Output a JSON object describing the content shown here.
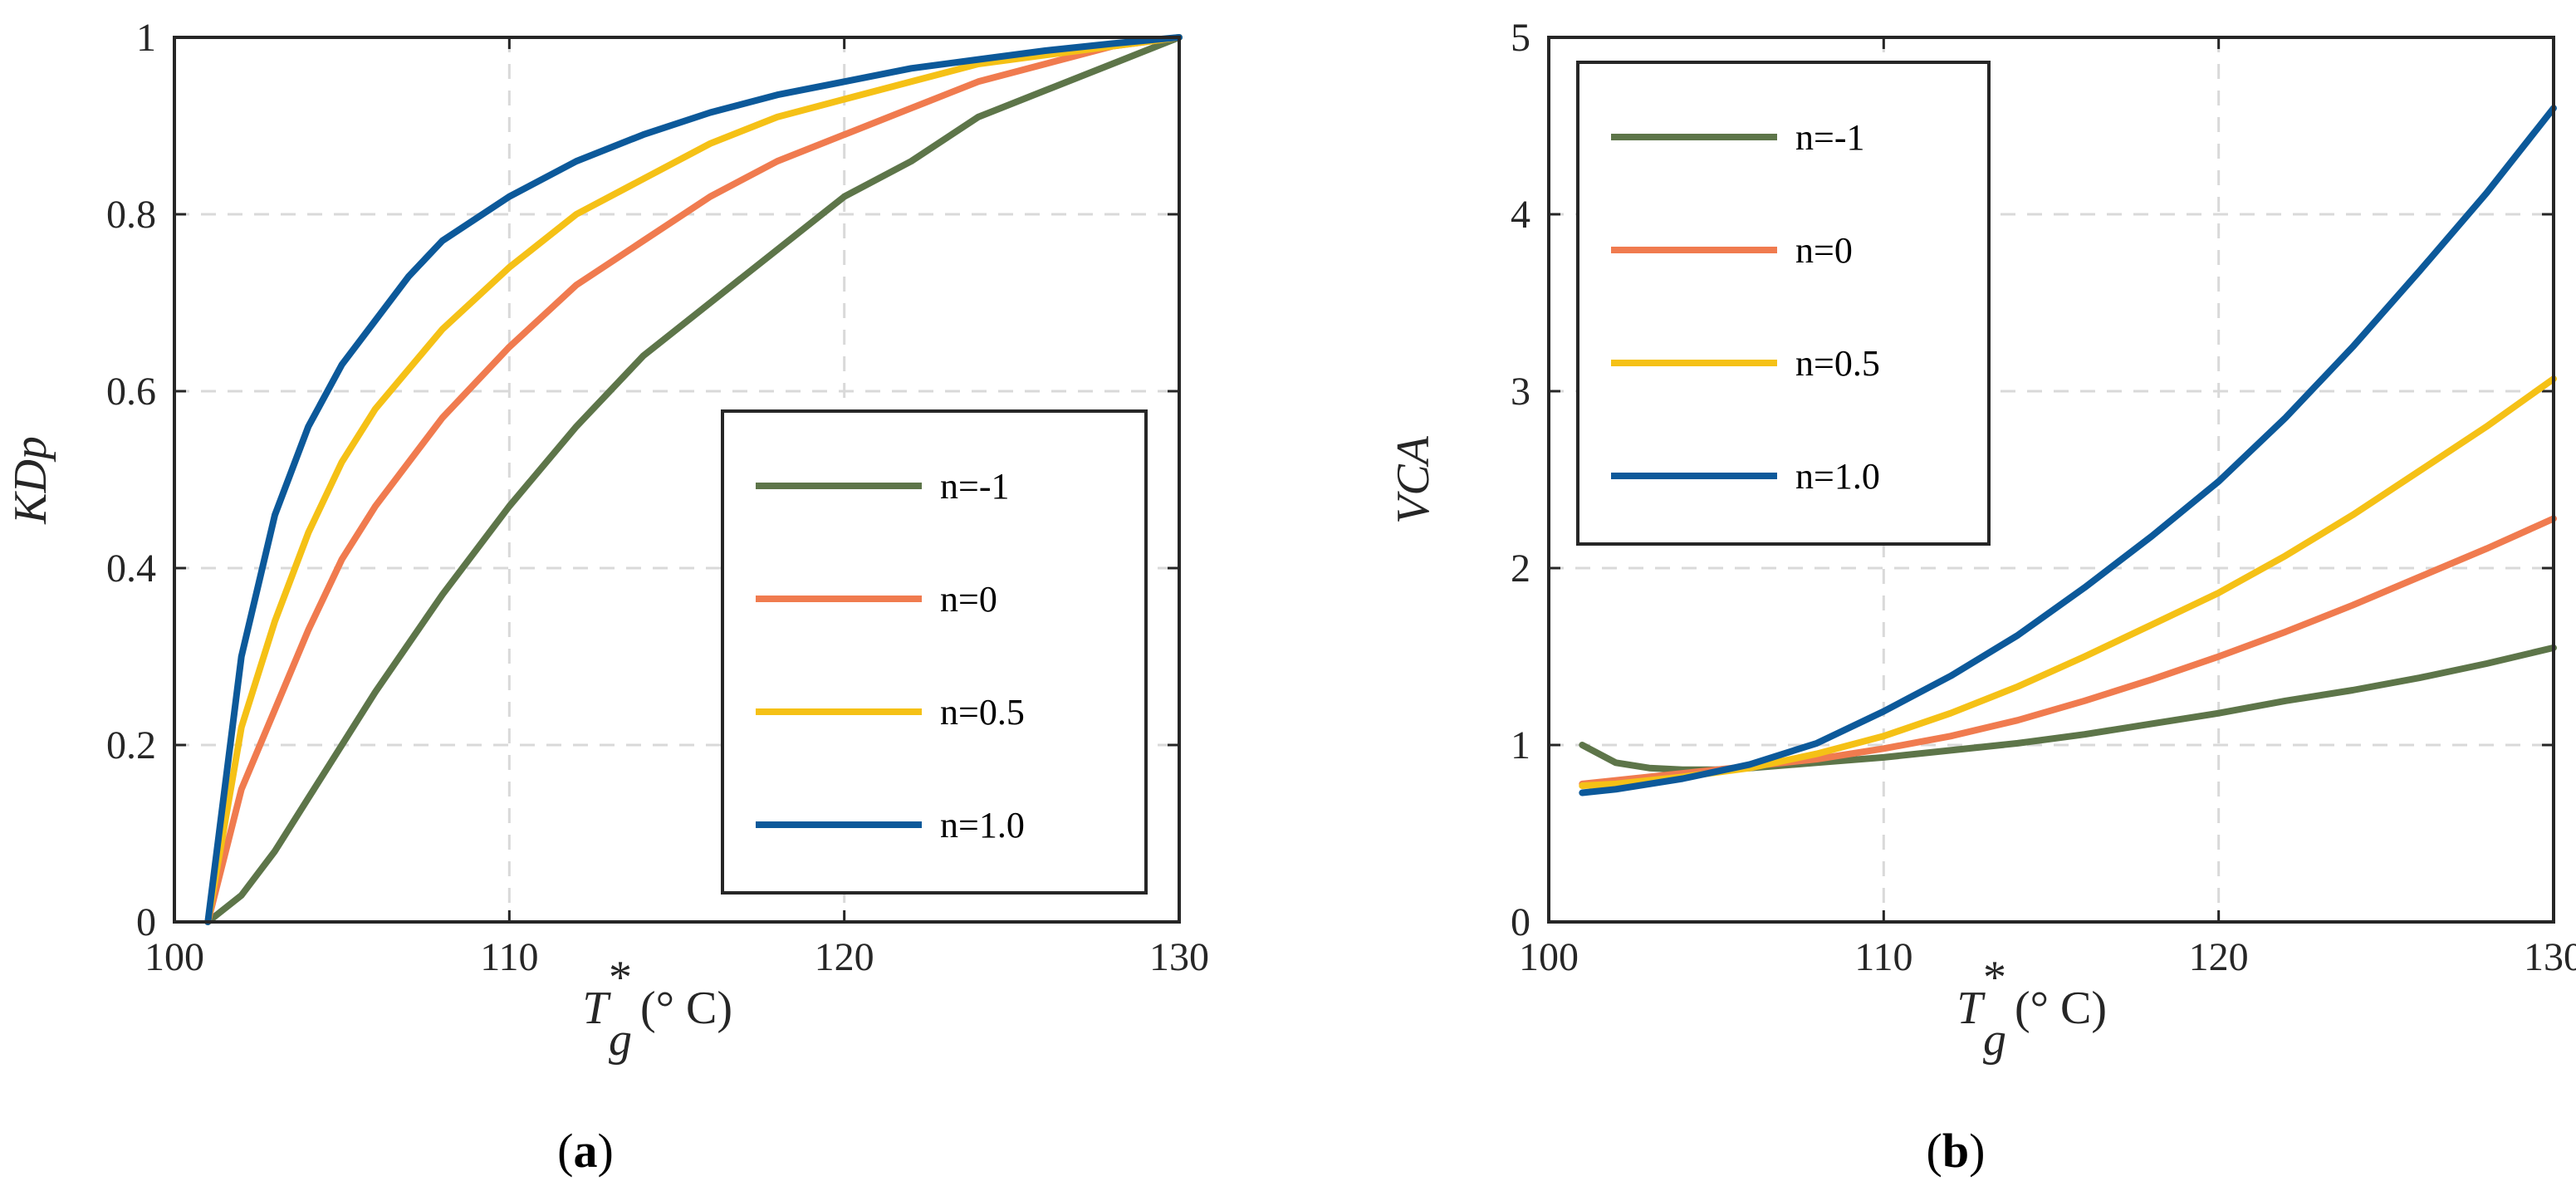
{
  "chart_data": [
    {
      "type": "line",
      "panel_label": "a",
      "ylabel": "KDp",
      "xlabel": {
        "symbol": "T",
        "sup": "*",
        "sub": "g",
        "unit": " (° C)"
      },
      "xlim": [
        100,
        130
      ],
      "ylim": [
        0,
        1
      ],
      "xticks": [
        100,
        110,
        120,
        130
      ],
      "yticks": [
        0,
        0.2,
        0.4,
        0.6,
        0.8,
        1
      ],
      "ytick_labels": [
        "0",
        "0.2",
        "0.4",
        "0.6",
        "0.8",
        "1"
      ],
      "grid": true,
      "legend_position": "bottom-right",
      "series": [
        {
          "name": "n=-1",
          "color": "#5d7549",
          "x": [
            101,
            102,
            103,
            104,
            105,
            106,
            108,
            110,
            112,
            114,
            116,
            118,
            120,
            122,
            124,
            126,
            128,
            130
          ],
          "y": [
            0,
            0.03,
            0.08,
            0.14,
            0.2,
            0.26,
            0.37,
            0.47,
            0.56,
            0.64,
            0.7,
            0.76,
            0.82,
            0.86,
            0.91,
            0.94,
            0.97,
            1.0
          ]
        },
        {
          "name": "n=0",
          "color": "#f07b4f",
          "x": [
            101,
            102,
            103,
            104,
            105,
            106,
            108,
            110,
            112,
            114,
            116,
            118,
            120,
            122,
            124,
            126,
            128,
            130
          ],
          "y": [
            0,
            0.15,
            0.24,
            0.33,
            0.41,
            0.47,
            0.57,
            0.65,
            0.72,
            0.77,
            0.82,
            0.86,
            0.89,
            0.92,
            0.95,
            0.97,
            0.99,
            1.0
          ]
        },
        {
          "name": "n=0.5",
          "color": "#f5c116",
          "x": [
            101,
            102,
            103,
            104,
            105,
            106,
            108,
            110,
            112,
            114,
            116,
            118,
            120,
            122,
            124,
            126,
            128,
            130
          ],
          "y": [
            0,
            0.22,
            0.34,
            0.44,
            0.52,
            0.58,
            0.67,
            0.74,
            0.8,
            0.84,
            0.88,
            0.91,
            0.93,
            0.95,
            0.97,
            0.98,
            0.99,
            1.0
          ]
        },
        {
          "name": "n=1.0",
          "color": "#0c599a",
          "x": [
            101,
            102,
            103,
            104,
            105,
            106,
            107,
            108,
            110,
            112,
            114,
            116,
            118,
            120,
            122,
            124,
            126,
            128,
            130
          ],
          "y": [
            0,
            0.3,
            0.46,
            0.56,
            0.63,
            0.68,
            0.73,
            0.77,
            0.82,
            0.86,
            0.89,
            0.915,
            0.935,
            0.95,
            0.965,
            0.975,
            0.985,
            0.993,
            1.0
          ]
        }
      ]
    },
    {
      "type": "line",
      "panel_label": "b",
      "ylabel": "VCA",
      "xlabel": {
        "symbol": "T",
        "sup": "*",
        "sub": "g",
        "unit": " (° C)"
      },
      "xlim": [
        100,
        130
      ],
      "ylim": [
        0,
        5
      ],
      "xticks": [
        100,
        110,
        120,
        130
      ],
      "yticks": [
        0,
        1,
        2,
        3,
        4,
        5
      ],
      "ytick_labels": [
        "0",
        "1",
        "2",
        "3",
        "4",
        "5"
      ],
      "grid": true,
      "legend_position": "top-left",
      "series": [
        {
          "name": "n=-1",
          "color": "#5d7549",
          "x": [
            101,
            102,
            103,
            104,
            105,
            106,
            108,
            110,
            112,
            114,
            116,
            118,
            120,
            122,
            124,
            126,
            128,
            130
          ],
          "y": [
            1.0,
            0.9,
            0.87,
            0.86,
            0.86,
            0.87,
            0.9,
            0.93,
            0.97,
            1.01,
            1.06,
            1.12,
            1.18,
            1.25,
            1.31,
            1.38,
            1.46,
            1.55
          ]
        },
        {
          "name": "n=0",
          "color": "#f07b4f",
          "x": [
            101,
            102,
            104,
            106,
            108,
            110,
            112,
            114,
            116,
            118,
            120,
            122,
            124,
            126,
            128,
            130
          ],
          "y": [
            0.78,
            0.8,
            0.84,
            0.88,
            0.92,
            0.98,
            1.05,
            1.14,
            1.25,
            1.37,
            1.5,
            1.64,
            1.79,
            1.95,
            2.11,
            2.28
          ]
        },
        {
          "name": "n=0.5",
          "color": "#f5c116",
          "x": [
            101,
            102,
            104,
            106,
            108,
            110,
            112,
            114,
            116,
            118,
            120,
            122,
            124,
            126,
            128,
            130
          ],
          "y": [
            0.77,
            0.78,
            0.82,
            0.87,
            0.95,
            1.05,
            1.18,
            1.33,
            1.5,
            1.68,
            1.86,
            2.07,
            2.3,
            2.55,
            2.8,
            3.07
          ]
        },
        {
          "name": "n=1.0",
          "color": "#0c599a",
          "x": [
            101,
            102,
            104,
            106,
            108,
            110,
            112,
            114,
            116,
            118,
            120,
            122,
            124,
            126,
            128,
            130
          ],
          "y": [
            0.73,
            0.75,
            0.81,
            0.89,
            1.01,
            1.19,
            1.39,
            1.62,
            1.89,
            2.18,
            2.49,
            2.85,
            3.25,
            3.68,
            4.12,
            4.6
          ]
        }
      ]
    }
  ]
}
